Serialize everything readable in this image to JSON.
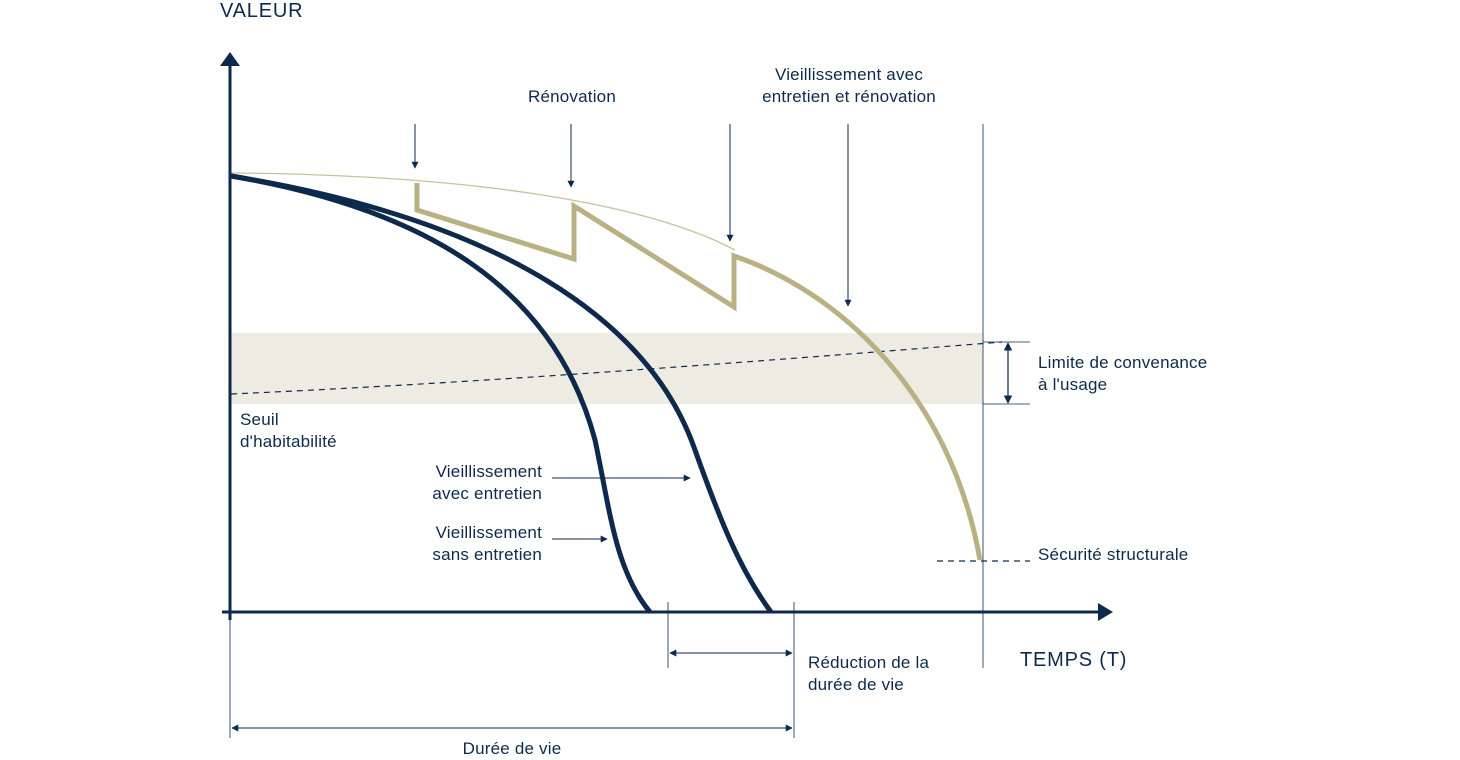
{
  "colors": {
    "navy": "#0d2a4c",
    "gold": "#b9b184",
    "gold_light": "#c8c19c",
    "band": "#eeece2",
    "background": "#ffffff"
  },
  "axes": {
    "y_label": "VALEUR",
    "x_label": "TEMPS (T)"
  },
  "labels": {
    "renovation": "Rénovation",
    "aging_full": [
      "Vieillissement avec",
      "entretien et rénovation"
    ],
    "limit": [
      "Limite de convenance",
      "à l'usage"
    ],
    "threshold": [
      "Seuil",
      "d'habitabilité"
    ],
    "aging_with": [
      "Vieillissement",
      "avec entretien"
    ],
    "aging_without": [
      "Vieillissement",
      "sans entretien"
    ],
    "structural": "Sécurité structurale",
    "reduction": [
      "Réduction de la",
      "durée de vie"
    ],
    "lifespan": "Durée de vie"
  }
}
